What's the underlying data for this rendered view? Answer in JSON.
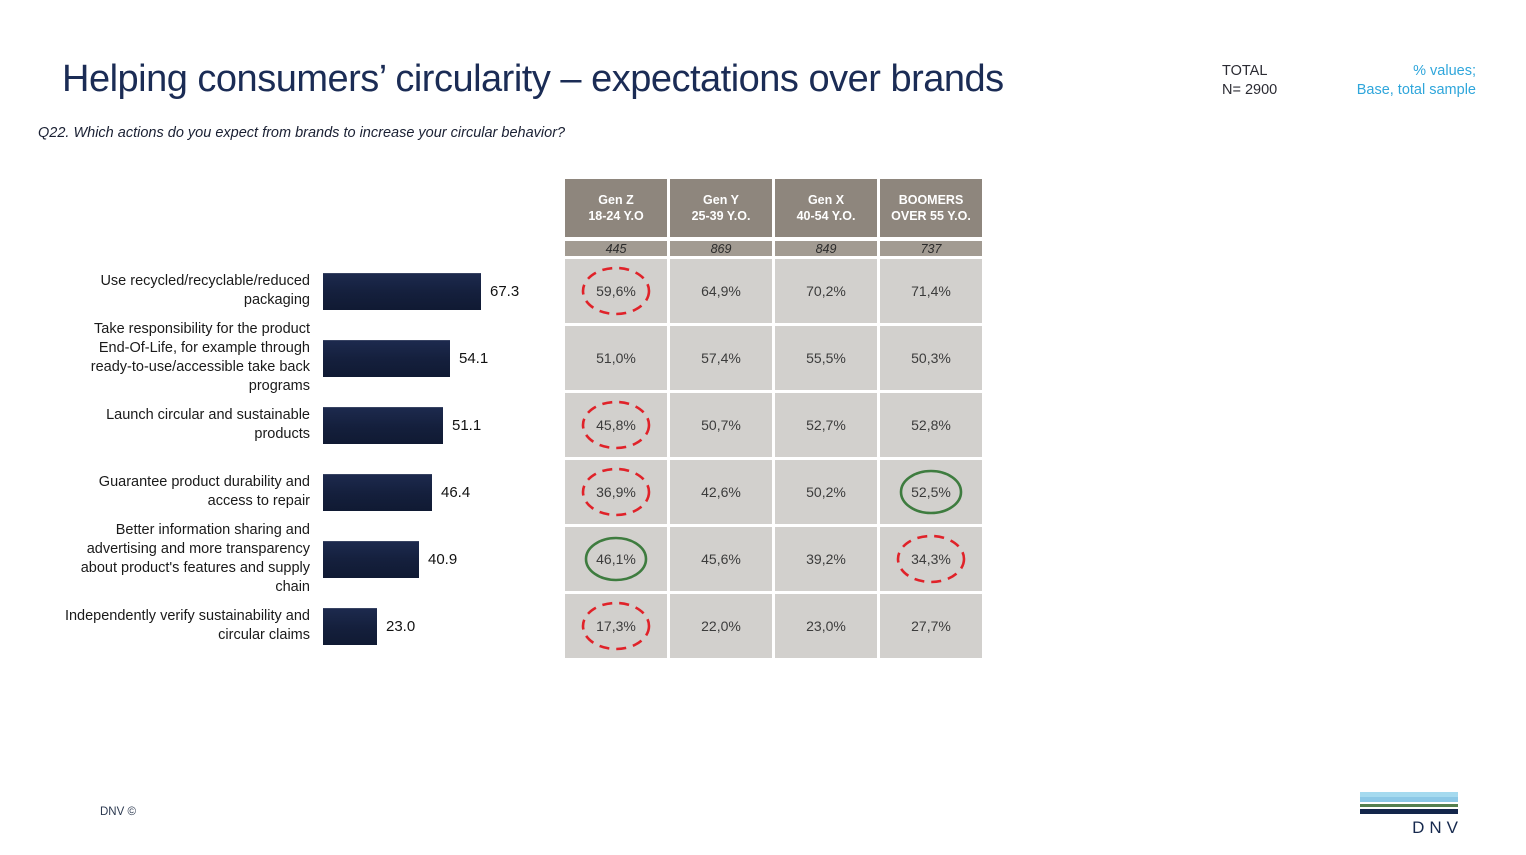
{
  "slide": {
    "title": "Helping consumers’ circularity – expectations over brands",
    "question": "Q22. Which actions do you expect from brands to increase your circular behavior?",
    "total_block": "TOTAL\nN= 2900",
    "note_block": "% values;\nBase, total sample",
    "footer_copyright": "DNV ©",
    "logo_text": "DNV"
  },
  "colors": {
    "title_navy": "#1b2c55",
    "note_blue": "#2fa6db",
    "bar_navy": "#16213e",
    "table_header_taupe": "#8e867d",
    "table_sample_taupe": "#a29b92",
    "table_cell_gray": "#d2d0cd",
    "highlight_red": "#e02229",
    "highlight_green": "#3e7c3f"
  },
  "chart_data": [
    {
      "type": "bar",
      "orientation": "horizontal",
      "title": "",
      "xlabel": "",
      "ylabel": "",
      "xlim": [
        0,
        100
      ],
      "grid": false,
      "value_labels": true,
      "categories": [
        "Use recycled/recyclable/reduced\npackaging",
        "Take responsibility for the product\nEnd-Of-Life, for example through\nready-to-use/accessible take back\nprograms",
        "Launch circular and sustainable\nproducts",
        "Guarantee product durability and\naccess to repair",
        "Better information sharing and\nadvertising and more transparency\nabout product's features and supply\nchain",
        "Independently verify sustainability and\ncircular claims"
      ],
      "values": [
        67.3,
        54.1,
        51.1,
        46.4,
        40.9,
        23.0
      ],
      "value_display": [
        "67.3",
        "54.1",
        "51.1",
        "46.4",
        "40.9",
        "23.0"
      ]
    },
    {
      "type": "table",
      "columns": [
        {
          "name": "Gen Z",
          "age": "18-24 Y.O",
          "base": "445"
        },
        {
          "name": "Gen Y",
          "age": "25-39 Y.O.",
          "base": "869"
        },
        {
          "name": "Gen X",
          "age": "40-54 Y.O.",
          "base": "849"
        },
        {
          "name": "BOOMERS",
          "age": "OVER 55 Y.O.",
          "base": "737"
        }
      ],
      "rows": [
        {
          "cells": [
            {
              "v": "59,6%",
              "mark": "red"
            },
            {
              "v": "64,9%"
            },
            {
              "v": "70,2%"
            },
            {
              "v": "71,4%"
            }
          ]
        },
        {
          "cells": [
            {
              "v": "51,0%"
            },
            {
              "v": "57,4%"
            },
            {
              "v": "55,5%"
            },
            {
              "v": "50,3%"
            }
          ]
        },
        {
          "cells": [
            {
              "v": "45,8%",
              "mark": "red"
            },
            {
              "v": "50,7%"
            },
            {
              "v": "52,7%"
            },
            {
              "v": "52,8%"
            }
          ]
        },
        {
          "cells": [
            {
              "v": "36,9%",
              "mark": "red"
            },
            {
              "v": "42,6%"
            },
            {
              "v": "50,2%"
            },
            {
              "v": "52,5%",
              "mark": "green"
            }
          ]
        },
        {
          "cells": [
            {
              "v": "46,1%",
              "mark": "green"
            },
            {
              "v": "45,6%"
            },
            {
              "v": "39,2%"
            },
            {
              "v": "34,3%",
              "mark": "red"
            }
          ]
        },
        {
          "cells": [
            {
              "v": "17,3%",
              "mark": "red"
            },
            {
              "v": "22,0%"
            },
            {
              "v": "23,0%"
            },
            {
              "v": "27,7%"
            }
          ]
        }
      ]
    }
  ]
}
